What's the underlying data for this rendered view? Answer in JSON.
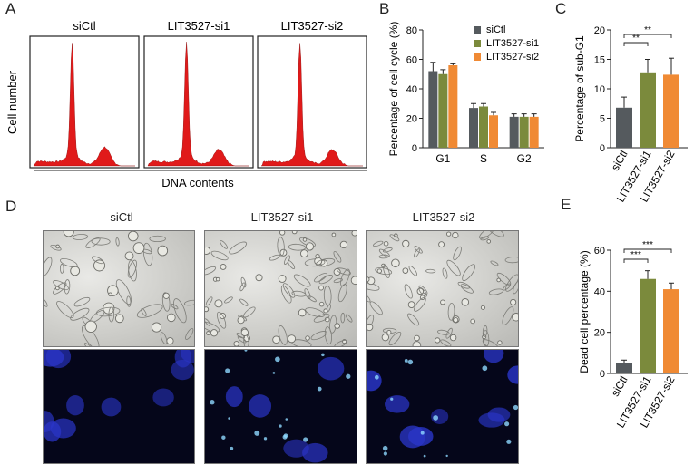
{
  "panels": {
    "A": {
      "letter": "A",
      "samples": [
        "siCtl",
        "LIT3527-si1",
        "LIT3527-si2"
      ],
      "ylabel": "Cell number",
      "xlabel": "DNA contents"
    },
    "B": {
      "letter": "B"
    },
    "C": {
      "letter": "C"
    },
    "D": {
      "letter": "D",
      "samples": [
        "siCtl",
        "LIT3527-si1",
        "LIT3527-si2"
      ]
    },
    "E": {
      "letter": "E"
    }
  },
  "colors": {
    "siCtl": "#555a5e",
    "LIT3527-si1": "#7b8a3c",
    "LIT3527-si2": "#f08a34",
    "histogram": "#e01a1a",
    "nuclei": "#2a35c8"
  },
  "chart_data": [
    {
      "id": "B",
      "type": "bar",
      "categories": [
        "G1",
        "S",
        "G2"
      ],
      "series": [
        {
          "name": "siCtl",
          "values": [
            52,
            27,
            21
          ],
          "errors": [
            6,
            3,
            2
          ]
        },
        {
          "name": "LIT3527-si1",
          "values": [
            50,
            28,
            21
          ],
          "errors": [
            3,
            2,
            2
          ]
        },
        {
          "name": "LIT3527-si2",
          "values": [
            56,
            22,
            21
          ],
          "errors": [
            1,
            2,
            2
          ]
        }
      ],
      "xlabel": "",
      "ylabel": "Percentage of cell cycle (%)",
      "ylim": [
        0,
        80
      ],
      "yticks": [
        0,
        20,
        40,
        60,
        80
      ],
      "legend": "top-right"
    },
    {
      "id": "C",
      "type": "bar",
      "categories": [
        "siCtl",
        "LIT3527-si1",
        "LIT3527-si2"
      ],
      "values": [
        6.8,
        12.8,
        12.4
      ],
      "errors": [
        1.8,
        2.2,
        2.8
      ],
      "xlabel": "",
      "ylabel": "Percentage of sub-G1",
      "ylim": [
        0,
        20
      ],
      "yticks": [
        0,
        5,
        10,
        15,
        20
      ],
      "significance": [
        {
          "from": 0,
          "to": 1,
          "label": "**"
        },
        {
          "from": 0,
          "to": 2,
          "label": "**"
        }
      ]
    },
    {
      "id": "E",
      "type": "bar",
      "categories": [
        "siCtl",
        "LIT3527-si1",
        "LIT3527-si2"
      ],
      "values": [
        5,
        46,
        41
      ],
      "errors": [
        1.5,
        4,
        3
      ],
      "xlabel": "",
      "ylabel": "Dead cell percentage (%)",
      "ylim": [
        0,
        60
      ],
      "yticks": [
        0,
        20,
        40,
        60
      ],
      "significance": [
        {
          "from": 0,
          "to": 1,
          "label": "***"
        },
        {
          "from": 0,
          "to": 2,
          "label": "***"
        }
      ]
    }
  ]
}
